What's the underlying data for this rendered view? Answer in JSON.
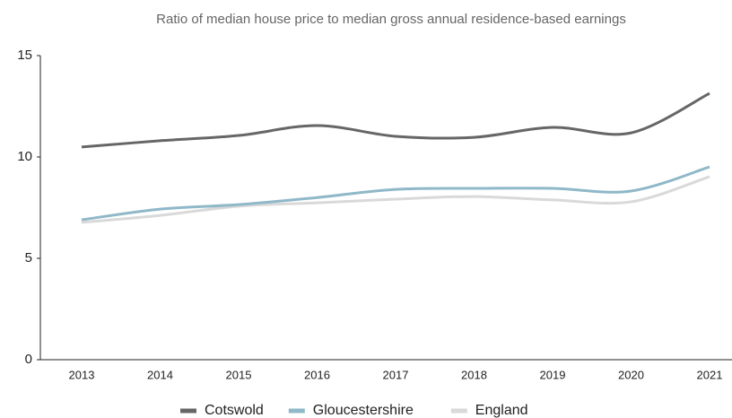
{
  "chart_data": {
    "type": "line",
    "title": "Ratio of median house price to median gross annual residence-based earnings",
    "categories": [
      "2013",
      "2014",
      "2015",
      "2016",
      "2017",
      "2018",
      "2019",
      "2020",
      "2021"
    ],
    "series": [
      {
        "name": "Cotswold",
        "color": "#666666",
        "values": [
          10.49,
          10.8,
          11.06,
          11.55,
          11.02,
          10.97,
          11.46,
          11.19,
          13.14
        ]
      },
      {
        "name": "Gloucestershire",
        "color": "#8fb8c8",
        "values": [
          6.9,
          7.43,
          7.65,
          8.0,
          8.4,
          8.45,
          8.45,
          8.32,
          9.51
        ]
      },
      {
        "name": "England",
        "color": "#d9d9d9",
        "values": [
          6.77,
          7.12,
          7.57,
          7.74,
          7.92,
          8.05,
          7.88,
          7.79,
          9.03
        ]
      }
    ],
    "ylim": [
      0,
      15
    ],
    "yticks": [
      0,
      5,
      10,
      15
    ],
    "grid": false,
    "legend": "bottom"
  }
}
